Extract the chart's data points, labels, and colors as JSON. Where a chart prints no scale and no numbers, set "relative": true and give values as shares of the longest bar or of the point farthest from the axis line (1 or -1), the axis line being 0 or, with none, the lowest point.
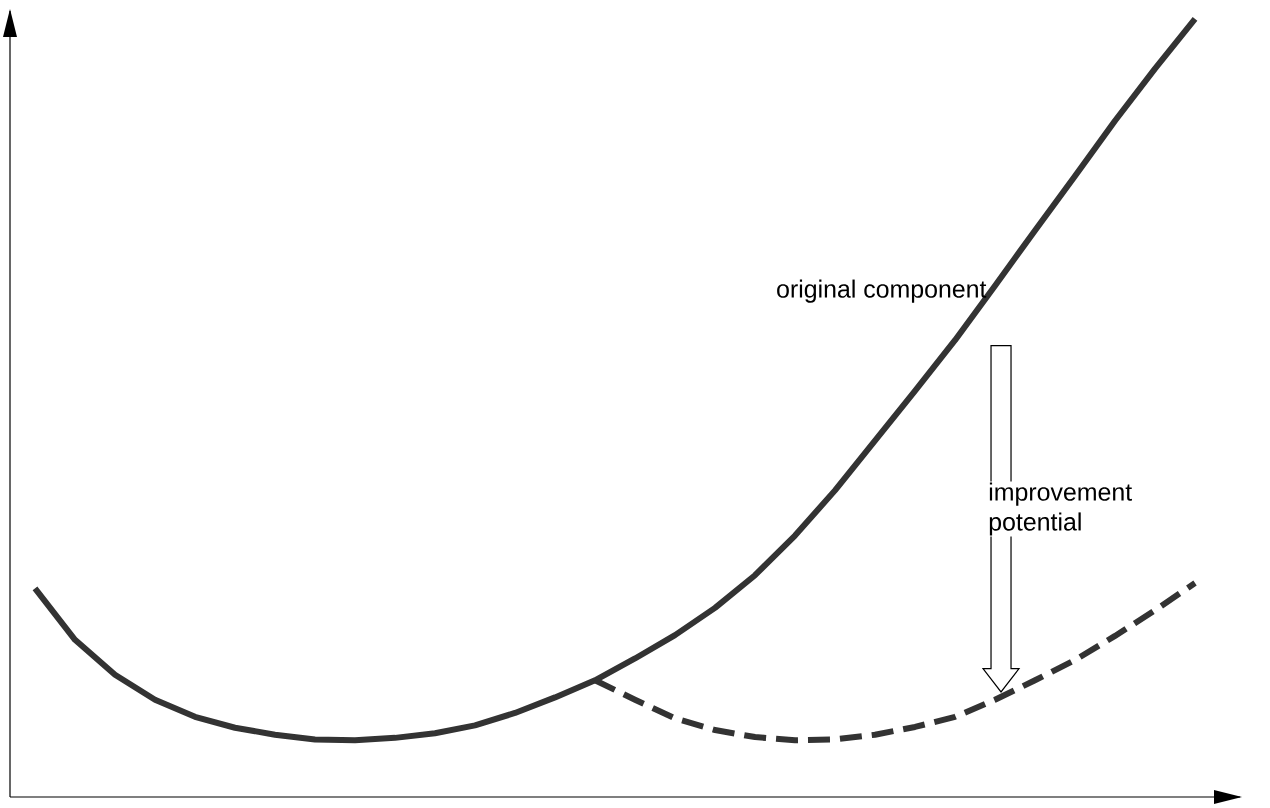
{
  "chart_data": {
    "type": "line",
    "relative": true,
    "categories": [
      null,
      null,
      null,
      null,
      null,
      null,
      null,
      null,
      null,
      null,
      null,
      null,
      null,
      null,
      null,
      null,
      null,
      null,
      null,
      null,
      null,
      null,
      null,
      null,
      null,
      null,
      null,
      null,
      null,
      null
    ],
    "series": [
      {
        "name": "original component",
        "color": "#333333",
        "line_style": "solid",
        "values": [
          0.268,
          0.202,
          0.157,
          0.125,
          0.103,
          0.089,
          0.08,
          0.074,
          0.073,
          0.076,
          0.082,
          0.092,
          0.108,
          0.128,
          0.15,
          0.178,
          0.208,
          0.243,
          0.285,
          0.336,
          0.394,
          0.458,
          0.522,
          0.587,
          0.657,
          0.728,
          0.798,
          0.869,
          0.936,
          1.0
        ]
      },
      {
        "color": "#333333",
        "line_style": "dashed",
        "values": [
          null,
          null,
          null,
          null,
          null,
          null,
          null,
          null,
          null,
          null,
          null,
          null,
          null,
          null,
          0.15,
          0.125,
          0.101,
          0.086,
          0.077,
          0.073,
          0.074,
          0.08,
          0.09,
          0.103,
          0.125,
          0.15,
          0.176,
          0.207,
          0.24,
          0.275
        ]
      }
    ],
    "annotations": [
      "improvement potential"
    ],
    "marker": "none"
  }
}
